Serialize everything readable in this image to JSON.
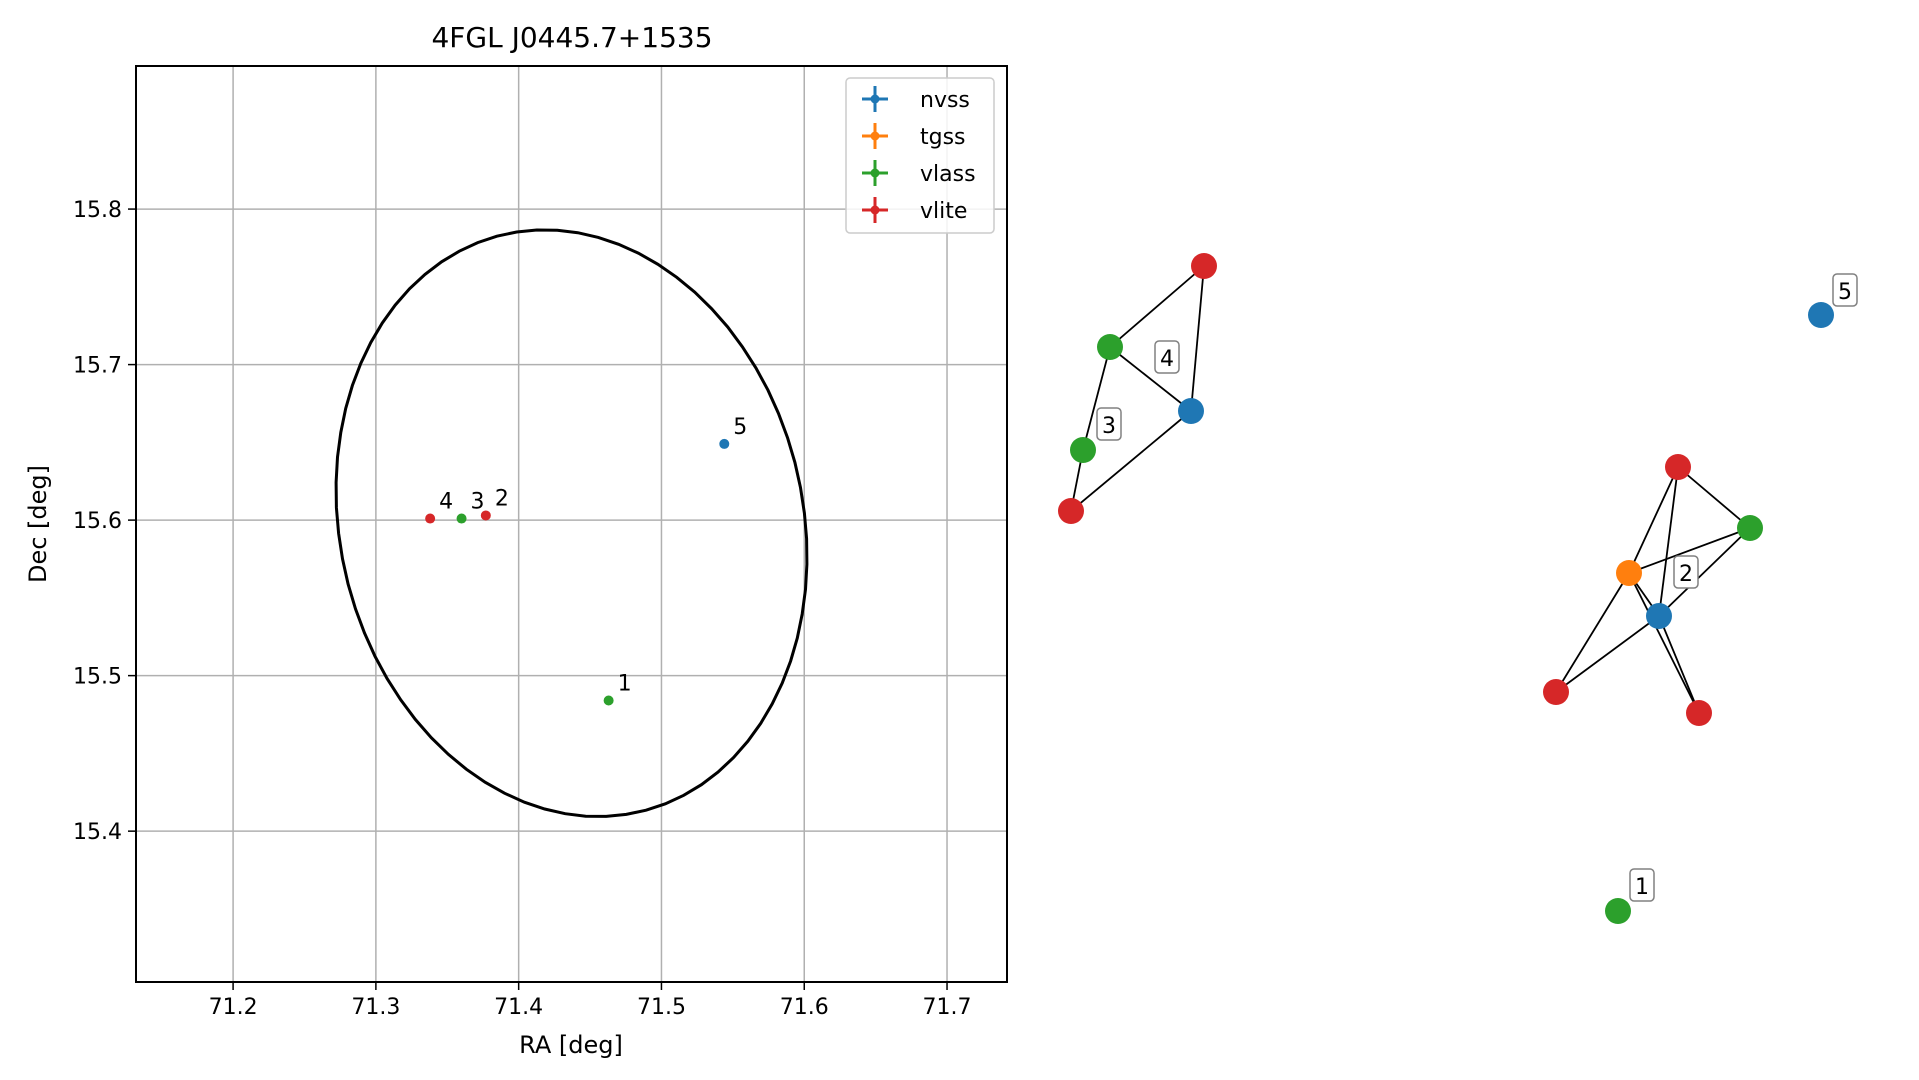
{
  "chart_data": [
    {
      "type": "scatter",
      "title": "4FGL J0445.7+1535",
      "xlabel": "RA [deg]",
      "ylabel": "Dec [deg]",
      "xlim": [
        71.132,
        71.742
      ],
      "ylim": [
        15.303,
        15.892
      ],
      "xticks": [
        71.2,
        71.3,
        71.4,
        71.5,
        71.6,
        71.7
      ],
      "yticks": [
        15.4,
        15.5,
        15.6,
        15.7,
        15.8
      ],
      "xtick_labels": [
        "71.2",
        "71.3",
        "71.4",
        "71.5",
        "71.6",
        "71.7"
      ],
      "ytick_labels": [
        "15.4",
        "15.5",
        "15.6",
        "15.7",
        "15.8"
      ],
      "grid": true,
      "legend_position": "top-right",
      "series": [
        {
          "name": "nvss",
          "color": "#1f77b4",
          "points": [
            {
              "x": 71.544,
              "y": 15.649,
              "label": "5"
            }
          ]
        },
        {
          "name": "tgss",
          "color": "#ff7f0e",
          "points": []
        },
        {
          "name": "vlass",
          "color": "#2ca02c",
          "points": [
            {
              "x": 71.463,
              "y": 15.484,
              "label": "1"
            },
            {
              "x": 71.36,
              "y": 15.601,
              "label": "3"
            }
          ]
        },
        {
          "name": "vlite",
          "color": "#d62728",
          "points": [
            {
              "x": 71.338,
              "y": 15.601,
              "label": "4"
            },
            {
              "x": 71.377,
              "y": 15.603,
              "label": "2"
            }
          ]
        }
      ],
      "ellipse": {
        "center_ra": 71.437,
        "center_dec": 15.598,
        "semi_ra": 0.161,
        "semi_dec": 0.192,
        "rotation_deg": 20,
        "color": "#000000"
      }
    },
    {
      "type": "network",
      "nodes": [
        {
          "id": "a1",
          "color": "#d62728"
        },
        {
          "id": "a2",
          "color": "#2ca02c"
        },
        {
          "id": "a3",
          "color": "#1f77b4"
        },
        {
          "id": "a4",
          "color": "#2ca02c"
        },
        {
          "id": "a5",
          "color": "#d62728"
        },
        {
          "id": "b1",
          "color": "#1f77b4"
        },
        {
          "id": "c1",
          "color": "#d62728"
        },
        {
          "id": "c2",
          "color": "#2ca02c"
        },
        {
          "id": "c3",
          "color": "#ff7f0e"
        },
        {
          "id": "c4",
          "color": "#1f77b4"
        },
        {
          "id": "c5",
          "color": "#d62728"
        },
        {
          "id": "c6",
          "color": "#d62728"
        },
        {
          "id": "d1",
          "color": "#2ca02c"
        }
      ],
      "edges": [
        [
          "a1",
          "a2"
        ],
        [
          "a1",
          "a3"
        ],
        [
          "a2",
          "a3"
        ],
        [
          "a2",
          "a4"
        ],
        [
          "a4",
          "a5"
        ],
        [
          "a3",
          "a5"
        ],
        [
          "c1",
          "c2"
        ],
        [
          "c1",
          "c3"
        ],
        [
          "c1",
          "c4"
        ],
        [
          "c2",
          "c3"
        ],
        [
          "c2",
          "c4"
        ],
        [
          "c3",
          "c4"
        ],
        [
          "c3",
          "c5"
        ],
        [
          "c3",
          "c6"
        ],
        [
          "c4",
          "c5"
        ],
        [
          "c4",
          "c6"
        ]
      ],
      "cluster_labels": [
        "4",
        "3",
        "5",
        "2",
        "1"
      ]
    }
  ]
}
